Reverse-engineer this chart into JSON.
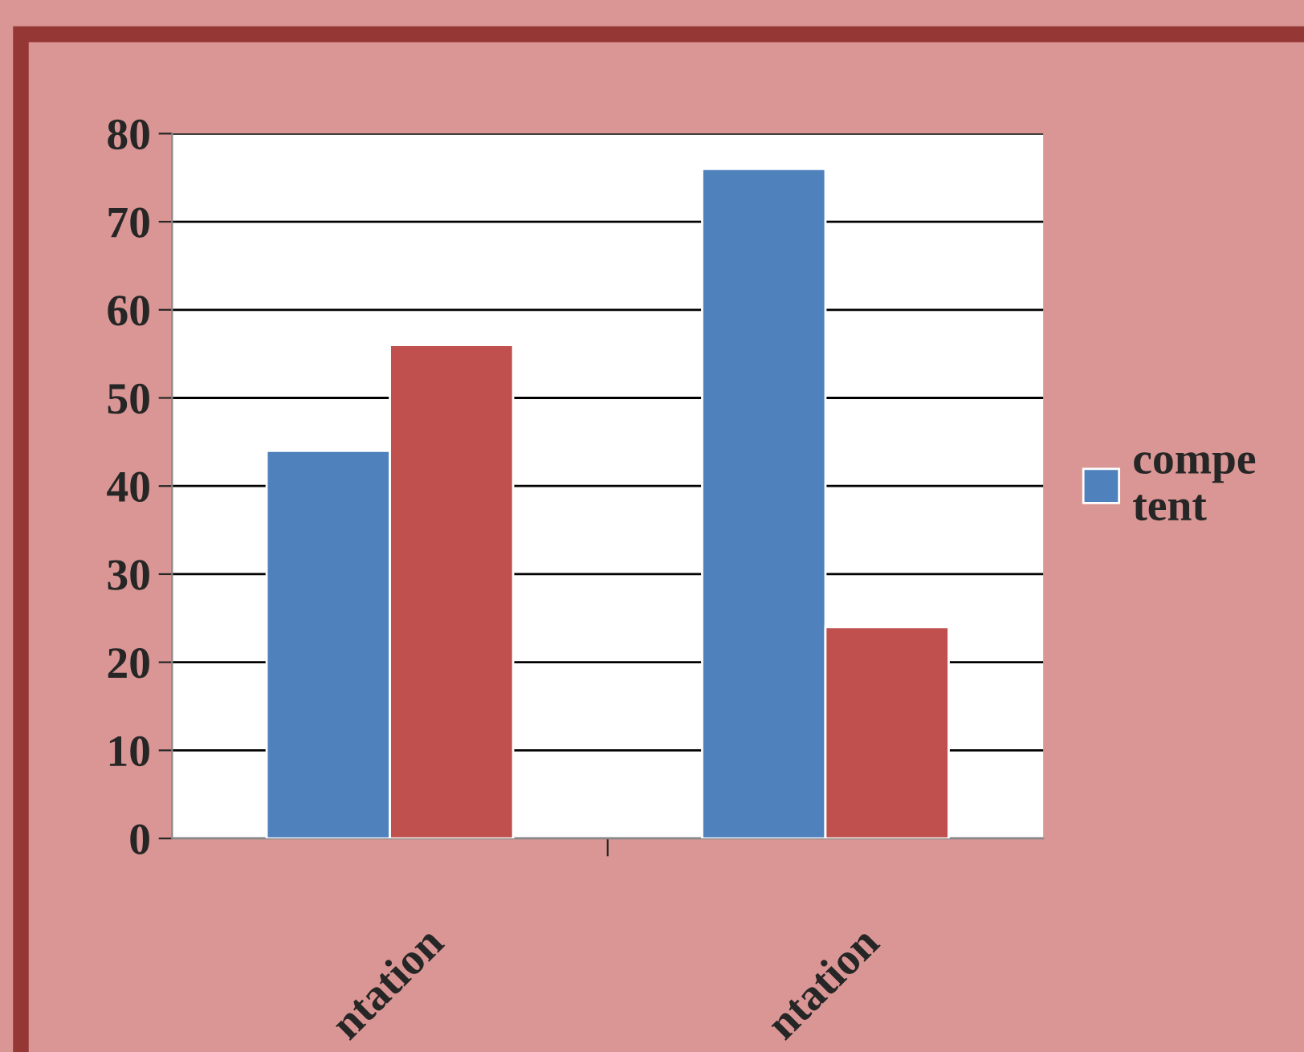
{
  "chart_data": {
    "type": "bar",
    "categories": [
      "ntation",
      "ntation"
    ],
    "series": [
      {
        "name": "compe\ntent",
        "color": "#4f81bd",
        "values": [
          44,
          76
        ]
      },
      {
        "color": "#c0504d",
        "values": [
          56,
          24
        ]
      }
    ],
    "ylim": [
      0,
      80
    ],
    "yticks": [
      0,
      10,
      20,
      30,
      40,
      50,
      60,
      70,
      80
    ],
    "grid": "y",
    "legend": "right"
  }
}
